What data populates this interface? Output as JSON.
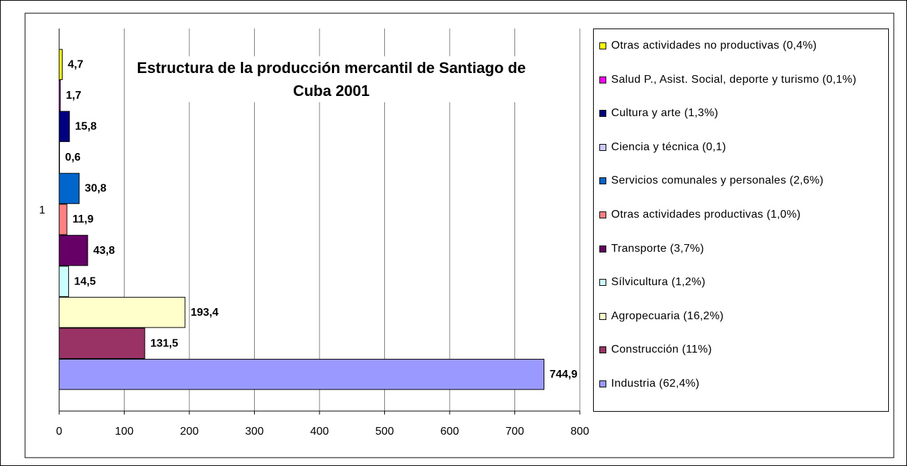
{
  "chart_data": {
    "type": "bar",
    "orientation": "horizontal",
    "title": "Estructura de la producción mercantil de Santiago de Cuba 2001",
    "categories": [
      "1"
    ],
    "series": [
      {
        "name": "Otras actividades no productivas (0,4%)",
        "color": "#ffff00",
        "values": [
          4.7
        ],
        "value_labels": [
          "4,7"
        ]
      },
      {
        "name": "Salud P., Asist. Social, deporte y turismo (0,1%)",
        "color": "#ff00ff",
        "values": [
          1.7
        ],
        "value_labels": [
          "1,7"
        ]
      },
      {
        "name": "Cultura y arte (1,3%)",
        "color": "#000080",
        "values": [
          15.8
        ],
        "value_labels": [
          "15,8"
        ]
      },
      {
        "name": "Ciencia y técnica (0,1)",
        "color": "#ccccff",
        "values": [
          0.6
        ],
        "value_labels": [
          "0,6"
        ]
      },
      {
        "name": "Servicios comunales y personales (2,6%)",
        "color": "#0066cc",
        "values": [
          30.8
        ],
        "value_labels": [
          "30,8"
        ]
      },
      {
        "name": "Otras actividades productivas (1,0%)",
        "color": "#ff8080",
        "values": [
          11.9
        ],
        "value_labels": [
          "11,9"
        ]
      },
      {
        "name": "Transporte (3,7%)",
        "color": "#660066",
        "values": [
          43.8
        ],
        "value_labels": [
          "43,8"
        ]
      },
      {
        "name": "Sílvicultura (1,2%)",
        "color": "#ccffff",
        "values": [
          14.5
        ],
        "value_labels": [
          "14,5"
        ]
      },
      {
        "name": "Agropecuaria (16,2%)",
        "color": "#ffffcc",
        "values": [
          193.4
        ],
        "value_labels": [
          "193,4"
        ]
      },
      {
        "name": "Construcción (11%)",
        "color": "#993366",
        "values": [
          131.5
        ],
        "value_labels": [
          "131,5"
        ]
      },
      {
        "name": "Industria (62,4%)",
        "color": "#9999ff",
        "values": [
          744.9
        ],
        "value_labels": [
          "744,9"
        ]
      }
    ],
    "xlim": [
      0,
      800
    ],
    "xticks": [
      0,
      100,
      200,
      300,
      400,
      500,
      600,
      700,
      800
    ],
    "grid": true,
    "legend": "right"
  }
}
